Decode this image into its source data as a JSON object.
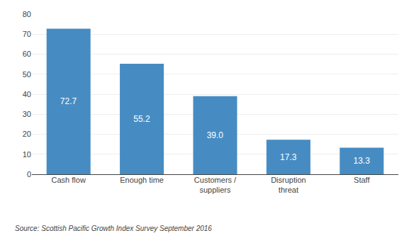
{
  "chart_data": {
    "type": "bar",
    "categories": [
      "Cash flow",
      "Enough time",
      "Customers /\nsuppliers",
      "Disruption\nthreat",
      "Staff"
    ],
    "values": [
      72.7,
      55.2,
      39.0,
      17.3,
      13.3
    ],
    "value_labels": [
      "72.7",
      "55.2",
      "39.0",
      "17.3",
      "13.3"
    ],
    "data_labels": true,
    "color": "#468cc3",
    "ylim": [
      0,
      80
    ],
    "yticks": [
      0,
      10,
      20,
      30,
      40,
      50,
      60,
      70,
      80
    ],
    "grid": true,
    "annotations": [
      "Source: Scottish Pacific Growth Index Survey September 2016"
    ]
  }
}
